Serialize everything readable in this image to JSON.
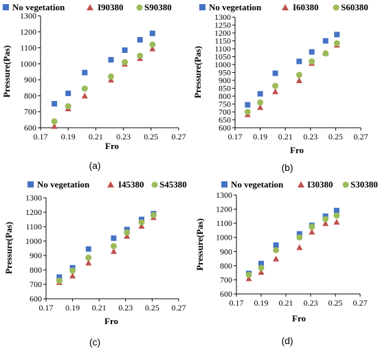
{
  "chart_data": [
    {
      "type": "scatter",
      "caption": "(a)",
      "xlabel": "Fro",
      "ylabel": "Pressure(Pas)",
      "xlim": [
        0.17,
        0.27
      ],
      "ylim": [
        600,
        1300
      ],
      "xticks": [
        "0.17",
        "0.19",
        "0.21",
        "0.23",
        "0.25",
        "0.27"
      ],
      "yticks": [
        "600",
        "700",
        "800",
        "900",
        "1000",
        "1100",
        "1200",
        "1300"
      ],
      "legend_position": "top",
      "grid": false,
      "series": [
        {
          "name": "No vegetation",
          "marker": "square",
          "color": "#4472C4",
          "x": [
            0.18,
            0.19,
            0.202,
            0.221,
            0.231,
            0.242,
            0.251
          ],
          "y": [
            750,
            815,
            945,
            1025,
            1085,
            1150,
            1190
          ]
        },
        {
          "name": "I90380",
          "marker": "triangle",
          "color": "#C0504D",
          "x": [
            0.18,
            0.19,
            0.202,
            0.221,
            0.231,
            0.242,
            0.251
          ],
          "y": [
            610,
            720,
            800,
            900,
            1000,
            1035,
            1095
          ]
        },
        {
          "name": "S90380",
          "marker": "circle",
          "color": "#9BBB59",
          "x": [
            0.18,
            0.19,
            0.202,
            0.221,
            0.231,
            0.242,
            0.251
          ],
          "y": [
            640,
            735,
            845,
            920,
            1010,
            1050,
            1120
          ]
        }
      ]
    },
    {
      "type": "scatter",
      "caption": "(b)",
      "xlabel": "Fro",
      "ylabel": "Pressure(Pas)",
      "xlim": [
        0.17,
        0.27
      ],
      "ylim": [
        600,
        1300
      ],
      "xticks": [
        "0.17",
        "0.19",
        "0.21",
        "0.23",
        "0.25",
        "0.27"
      ],
      "yticks": [
        "600",
        "650",
        "700",
        "750",
        "800",
        "850",
        "900",
        "950",
        "1000",
        "1050",
        "1100",
        "1150",
        "1200",
        "1250",
        "1300"
      ],
      "legend_position": "top",
      "grid": false,
      "series": [
        {
          "name": "No vegetation",
          "marker": "square",
          "color": "#4472C4",
          "x": [
            0.18,
            0.19,
            0.202,
            0.221,
            0.231,
            0.242,
            0.251
          ],
          "y": [
            745,
            815,
            945,
            1020,
            1080,
            1150,
            1190
          ]
        },
        {
          "name": "I60380",
          "marker": "triangle",
          "color": "#C0504D",
          "x": [
            0.18,
            0.19,
            0.202,
            0.221,
            0.231,
            0.242,
            0.251
          ],
          "y": [
            685,
            730,
            830,
            900,
            1010,
            1075,
            1125
          ]
        },
        {
          "name": "S60380",
          "marker": "circle",
          "color": "#9BBB59",
          "x": [
            0.18,
            0.19,
            0.202,
            0.221,
            0.231,
            0.242,
            0.251
          ],
          "y": [
            700,
            760,
            865,
            935,
            1020,
            1070,
            1135
          ]
        }
      ]
    },
    {
      "type": "scatter",
      "caption": "(c)",
      "xlabel": "Fro",
      "ylabel": "Pressure(Pas)",
      "xlim": [
        0.17,
        0.27
      ],
      "ylim": [
        600,
        1300
      ],
      "xticks": [
        "0.17",
        "0.19",
        "0.21",
        "0.23",
        "0.25",
        "0.27"
      ],
      "yticks": [
        "600",
        "700",
        "800",
        "900",
        "1000",
        "1100",
        "1200",
        "1300"
      ],
      "legend_position": "top",
      "grid": false,
      "series": [
        {
          "name": "No vegetation",
          "marker": "square",
          "color": "#4472C4",
          "x": [
            0.18,
            0.19,
            0.202,
            0.221,
            0.231,
            0.242,
            0.251
          ],
          "y": [
            750,
            815,
            945,
            1020,
            1080,
            1150,
            1190
          ]
        },
        {
          "name": "I45380",
          "marker": "triangle",
          "color": "#C0504D",
          "x": [
            0.18,
            0.19,
            0.202,
            0.221,
            0.231,
            0.242,
            0.251
          ],
          "y": [
            715,
            760,
            850,
            930,
            1035,
            1105,
            1165
          ]
        },
        {
          "name": "S45380",
          "marker": "circle",
          "color": "#9BBB59",
          "x": [
            0.18,
            0.19,
            0.202,
            0.221,
            0.231,
            0.242,
            0.251
          ],
          "y": [
            725,
            795,
            885,
            965,
            1060,
            1130,
            1180
          ]
        }
      ]
    },
    {
      "type": "scatter",
      "caption": "(d)",
      "xlabel": "Fro",
      "ylabel": "Pressure(Pas)",
      "xlim": [
        0.17,
        0.27
      ],
      "ylim": [
        600,
        1300
      ],
      "xticks": [
        "0.17",
        "0.19",
        "0.21",
        "0.23",
        "0.25",
        "0.27"
      ],
      "yticks": [
        "600",
        "700",
        "800",
        "900",
        "1000",
        "1100",
        "1200",
        "1300"
      ],
      "legend_position": "top",
      "grid": false,
      "series": [
        {
          "name": "No vegetation",
          "marker": "square",
          "color": "#4472C4",
          "x": [
            0.18,
            0.19,
            0.202,
            0.221,
            0.231,
            0.242,
            0.251
          ],
          "y": [
            745,
            815,
            945,
            1025,
            1085,
            1150,
            1190
          ]
        },
        {
          "name": "I30380",
          "marker": "triangle",
          "color": "#C0504D",
          "x": [
            0.18,
            0.19,
            0.202,
            0.221,
            0.231,
            0.242,
            0.251
          ],
          "y": [
            710,
            755,
            850,
            930,
            1040,
            1100,
            1110
          ]
        },
        {
          "name": "S30380",
          "marker": "circle",
          "color": "#9BBB59",
          "x": [
            0.18,
            0.19,
            0.202,
            0.221,
            0.231,
            0.242,
            0.251
          ],
          "y": [
            735,
            785,
            910,
            1000,
            1075,
            1130,
            1155
          ]
        }
      ]
    }
  ]
}
